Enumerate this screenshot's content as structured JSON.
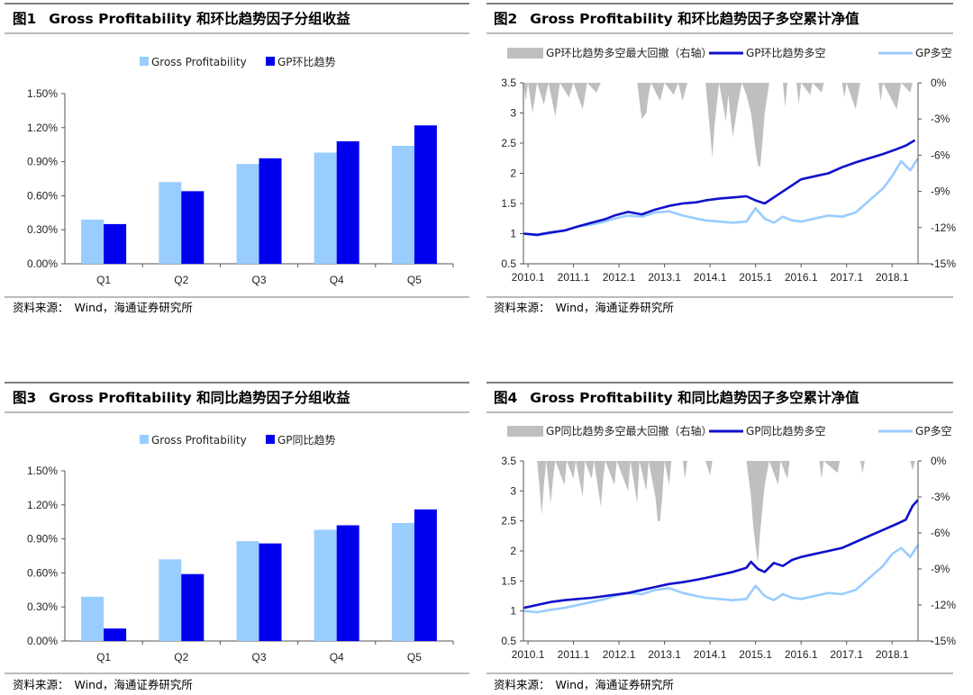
{
  "source_label": "资料来源：",
  "source_text": "Wind，海通证券研究所",
  "colors": {
    "light": "#99ccff",
    "dark": "#0000ee",
    "navy": "#1010cc",
    "gray": "#bfbfbf"
  },
  "chart_data": [
    {
      "fig": "图1",
      "type": "bar",
      "title": "Gross Profitability 和环比趋势因子分组收益",
      "categories": [
        "Q1",
        "Q2",
        "Q3",
        "Q4",
        "Q5"
      ],
      "series": [
        {
          "name": "Gross Profitability",
          "values": [
            0.39,
            0.72,
            0.88,
            0.98,
            1.04
          ]
        },
        {
          "name": "GP环比趋势",
          "values": [
            0.35,
            0.64,
            0.93,
            1.08,
            1.22
          ]
        }
      ],
      "ylim": [
        0,
        1.5
      ],
      "yticks": [
        "0.00%",
        "0.30%",
        "0.60%",
        "0.90%",
        "1.20%",
        "1.50%"
      ]
    },
    {
      "fig": "图2",
      "type": "line",
      "title": "Gross Profitability 和环比趋势因子多空累计净值",
      "legend": [
        "GP环比趋势多空最大回撤（右轴）",
        "GP环比趋势多空",
        "GP多空"
      ],
      "xticks": [
        "2010.1",
        "2011.1",
        "2012.1",
        "2013.1",
        "2014.1",
        "2015.1",
        "2016.1",
        "2017.1",
        "2018.1"
      ],
      "x_range": [
        2010.0,
        2018.67
      ],
      "ylim": [
        0.5,
        3.5
      ],
      "yticks": [
        "0.5",
        "1",
        "1.5",
        "2",
        "2.5",
        "3",
        "3.5"
      ],
      "y2lim": [
        -15,
        0
      ],
      "y2ticks": [
        "0%",
        "-3%",
        "-6%",
        "-9%",
        "-12%",
        "-15%"
      ],
      "trend_series": [
        [
          2010.0,
          1.0
        ],
        [
          2010.3,
          0.98
        ],
        [
          2010.6,
          1.02
        ],
        [
          2010.9,
          1.05
        ],
        [
          2011.2,
          1.12
        ],
        [
          2011.5,
          1.18
        ],
        [
          2011.8,
          1.24
        ],
        [
          2012.0,
          1.3
        ],
        [
          2012.3,
          1.36
        ],
        [
          2012.6,
          1.32
        ],
        [
          2012.9,
          1.4
        ],
        [
          2013.2,
          1.46
        ],
        [
          2013.5,
          1.5
        ],
        [
          2013.8,
          1.52
        ],
        [
          2014.0,
          1.55
        ],
        [
          2014.3,
          1.58
        ],
        [
          2014.6,
          1.6
        ],
        [
          2014.9,
          1.62
        ],
        [
          2015.1,
          1.55
        ],
        [
          2015.3,
          1.5
        ],
        [
          2015.5,
          1.6
        ],
        [
          2015.7,
          1.7
        ],
        [
          2015.9,
          1.8
        ],
        [
          2016.1,
          1.9
        ],
        [
          2016.4,
          1.95
        ],
        [
          2016.7,
          2.0
        ],
        [
          2017.0,
          2.1
        ],
        [
          2017.3,
          2.18
        ],
        [
          2017.6,
          2.25
        ],
        [
          2017.9,
          2.32
        ],
        [
          2018.2,
          2.4
        ],
        [
          2018.4,
          2.46
        ],
        [
          2018.6,
          2.55
        ]
      ],
      "gp_series": [
        [
          2010.0,
          1.0
        ],
        [
          2010.3,
          0.97
        ],
        [
          2010.6,
          1.01
        ],
        [
          2010.9,
          1.05
        ],
        [
          2011.2,
          1.12
        ],
        [
          2011.5,
          1.15
        ],
        [
          2011.8,
          1.2
        ],
        [
          2012.0,
          1.25
        ],
        [
          2012.3,
          1.3
        ],
        [
          2012.6,
          1.28
        ],
        [
          2012.9,
          1.35
        ],
        [
          2013.2,
          1.37
        ],
        [
          2013.5,
          1.3
        ],
        [
          2013.8,
          1.25
        ],
        [
          2014.0,
          1.22
        ],
        [
          2014.3,
          1.2
        ],
        [
          2014.6,
          1.18
        ],
        [
          2014.9,
          1.2
        ],
        [
          2015.1,
          1.42
        ],
        [
          2015.3,
          1.25
        ],
        [
          2015.5,
          1.18
        ],
        [
          2015.7,
          1.28
        ],
        [
          2015.9,
          1.22
        ],
        [
          2016.1,
          1.2
        ],
        [
          2016.4,
          1.25
        ],
        [
          2016.7,
          1.3
        ],
        [
          2017.0,
          1.28
        ],
        [
          2017.3,
          1.35
        ],
        [
          2017.6,
          1.55
        ],
        [
          2017.9,
          1.75
        ],
        [
          2018.1,
          1.95
        ],
        [
          2018.3,
          2.2
        ],
        [
          2018.5,
          2.05
        ],
        [
          2018.67,
          2.25
        ]
      ],
      "drawdown_series": [
        [
          2010.0,
          0
        ],
        [
          2010.05,
          -1.5
        ],
        [
          2010.1,
          0
        ],
        [
          2010.2,
          -2.5
        ],
        [
          2010.3,
          0
        ],
        [
          2010.45,
          -1.8
        ],
        [
          2010.55,
          0
        ],
        [
          2010.7,
          -2.8
        ],
        [
          2010.8,
          0
        ],
        [
          2011.0,
          -1.2
        ],
        [
          2011.1,
          0
        ],
        [
          2011.3,
          -2.2
        ],
        [
          2011.4,
          0
        ],
        [
          2011.6,
          -0.8
        ],
        [
          2011.7,
          0
        ],
        [
          2012.5,
          0
        ],
        [
          2012.6,
          -3.0
        ],
        [
          2012.7,
          -2.5
        ],
        [
          2012.75,
          -1.0
        ],
        [
          2012.8,
          0
        ],
        [
          2013.0,
          -1.5
        ],
        [
          2013.1,
          0
        ],
        [
          2013.3,
          -1.0
        ],
        [
          2013.4,
          0
        ],
        [
          2013.5,
          -1.5
        ],
        [
          2013.6,
          0
        ],
        [
          2014.0,
          0
        ],
        [
          2014.1,
          -4.0
        ],
        [
          2014.15,
          -6.2
        ],
        [
          2014.2,
          -3.5
        ],
        [
          2014.3,
          0
        ],
        [
          2014.45,
          -3.2
        ],
        [
          2014.5,
          -1.0
        ],
        [
          2014.6,
          -4.5
        ],
        [
          2014.7,
          -2.0
        ],
        [
          2014.8,
          0
        ],
        [
          2014.9,
          -1.0
        ],
        [
          2015.0,
          -2.5
        ],
        [
          2015.1,
          -5.5
        ],
        [
          2015.15,
          -6.8
        ],
        [
          2015.2,
          -7.0
        ],
        [
          2015.25,
          -5.0
        ],
        [
          2015.3,
          -2.5
        ],
        [
          2015.4,
          0
        ],
        [
          2015.7,
          0
        ],
        [
          2015.75,
          -2.0
        ],
        [
          2015.8,
          0
        ],
        [
          2016.0,
          0
        ],
        [
          2016.05,
          -1.8
        ],
        [
          2016.1,
          0
        ],
        [
          2016.3,
          -1.0
        ],
        [
          2016.35,
          0
        ],
        [
          2016.55,
          -0.8
        ],
        [
          2016.6,
          0
        ],
        [
          2017.0,
          0
        ],
        [
          2017.05,
          -1.2
        ],
        [
          2017.1,
          0
        ],
        [
          2017.3,
          -2.2
        ],
        [
          2017.4,
          0
        ],
        [
          2017.8,
          0
        ],
        [
          2017.85,
          -1.5
        ],
        [
          2017.9,
          0
        ],
        [
          2018.2,
          -2.2
        ],
        [
          2018.3,
          0
        ],
        [
          2018.5,
          -0.8
        ],
        [
          2018.55,
          0
        ],
        [
          2018.67,
          0
        ]
      ]
    },
    {
      "fig": "图3",
      "type": "bar",
      "title": "Gross Profitability 和同比趋势因子分组收益",
      "categories": [
        "Q1",
        "Q2",
        "Q3",
        "Q4",
        "Q5"
      ],
      "series": [
        {
          "name": "Gross Profitability",
          "values": [
            0.39,
            0.72,
            0.88,
            0.98,
            1.04
          ]
        },
        {
          "name": "GP同比趋势",
          "values": [
            0.11,
            0.59,
            0.86,
            1.02,
            1.16
          ]
        }
      ],
      "ylim": [
        0,
        1.5
      ],
      "yticks": [
        "0.00%",
        "0.30%",
        "0.60%",
        "0.90%",
        "1.20%",
        "1.50%"
      ]
    },
    {
      "fig": "图4",
      "type": "line",
      "title": "Gross Profitability 和同比趋势因子多空累计净值",
      "legend": [
        "GP同比趋势多空最大回撤（右轴）",
        "GP同比趋势多空",
        "GP多空"
      ],
      "xticks": [
        "2010.1",
        "2011.1",
        "2012.1",
        "2013.1",
        "2014.1",
        "2015.1",
        "2016.1",
        "2017.1",
        "2018.1"
      ],
      "x_range": [
        2010.0,
        2018.67
      ],
      "ylim": [
        0.5,
        3.5
      ],
      "yticks": [
        "0.5",
        "1",
        "1.5",
        "2",
        "2.5",
        "3",
        "3.5"
      ],
      "y2lim": [
        -15,
        0
      ],
      "y2ticks": [
        "0%",
        "-3%",
        "-6%",
        "-9%",
        "-12%",
        "-15%"
      ],
      "trend_series": [
        [
          2010.0,
          1.05
        ],
        [
          2010.3,
          1.1
        ],
        [
          2010.6,
          1.15
        ],
        [
          2010.9,
          1.18
        ],
        [
          2011.2,
          1.2
        ],
        [
          2011.5,
          1.22
        ],
        [
          2011.8,
          1.25
        ],
        [
          2012.0,
          1.27
        ],
        [
          2012.3,
          1.3
        ],
        [
          2012.6,
          1.35
        ],
        [
          2012.9,
          1.4
        ],
        [
          2013.2,
          1.45
        ],
        [
          2013.5,
          1.48
        ],
        [
          2013.8,
          1.52
        ],
        [
          2014.0,
          1.55
        ],
        [
          2014.3,
          1.6
        ],
        [
          2014.6,
          1.65
        ],
        [
          2014.9,
          1.72
        ],
        [
          2015.0,
          1.82
        ],
        [
          2015.15,
          1.7
        ],
        [
          2015.3,
          1.65
        ],
        [
          2015.5,
          1.8
        ],
        [
          2015.7,
          1.75
        ],
        [
          2015.9,
          1.85
        ],
        [
          2016.1,
          1.9
        ],
        [
          2016.4,
          1.95
        ],
        [
          2016.7,
          2.0
        ],
        [
          2017.0,
          2.05
        ],
        [
          2017.3,
          2.15
        ],
        [
          2017.6,
          2.25
        ],
        [
          2017.9,
          2.35
        ],
        [
          2018.2,
          2.45
        ],
        [
          2018.4,
          2.52
        ],
        [
          2018.55,
          2.75
        ],
        [
          2018.67,
          2.85
        ]
      ],
      "gp_series": [
        [
          2010.0,
          1.0
        ],
        [
          2010.3,
          0.98
        ],
        [
          2010.6,
          1.02
        ],
        [
          2010.9,
          1.05
        ],
        [
          2011.2,
          1.1
        ],
        [
          2011.5,
          1.15
        ],
        [
          2011.8,
          1.2
        ],
        [
          2012.0,
          1.25
        ],
        [
          2012.3,
          1.3
        ],
        [
          2012.6,
          1.28
        ],
        [
          2012.9,
          1.35
        ],
        [
          2013.2,
          1.38
        ],
        [
          2013.5,
          1.3
        ],
        [
          2013.8,
          1.25
        ],
        [
          2014.0,
          1.22
        ],
        [
          2014.3,
          1.2
        ],
        [
          2014.6,
          1.18
        ],
        [
          2014.9,
          1.2
        ],
        [
          2015.1,
          1.42
        ],
        [
          2015.3,
          1.25
        ],
        [
          2015.5,
          1.18
        ],
        [
          2015.7,
          1.28
        ],
        [
          2015.9,
          1.22
        ],
        [
          2016.1,
          1.2
        ],
        [
          2016.4,
          1.25
        ],
        [
          2016.7,
          1.3
        ],
        [
          2017.0,
          1.28
        ],
        [
          2017.3,
          1.35
        ],
        [
          2017.6,
          1.55
        ],
        [
          2017.9,
          1.75
        ],
        [
          2018.1,
          1.95
        ],
        [
          2018.3,
          2.05
        ],
        [
          2018.5,
          1.9
        ],
        [
          2018.67,
          2.1
        ]
      ],
      "drawdown_series": [
        [
          2010.0,
          0
        ],
        [
          2010.3,
          0
        ],
        [
          2010.35,
          -2.0
        ],
        [
          2010.4,
          -4.5
        ],
        [
          2010.45,
          -2.0
        ],
        [
          2010.5,
          0
        ],
        [
          2010.6,
          -3.5
        ],
        [
          2010.65,
          -1.5
        ],
        [
          2010.7,
          0
        ],
        [
          2010.9,
          -2.0
        ],
        [
          2010.95,
          0
        ],
        [
          2011.1,
          -1.5
        ],
        [
          2011.15,
          0
        ],
        [
          2011.3,
          -3.0
        ],
        [
          2011.35,
          0
        ],
        [
          2011.5,
          -1.5
        ],
        [
          2011.55,
          0
        ],
        [
          2011.7,
          -3.8
        ],
        [
          2011.75,
          -1.5
        ],
        [
          2011.8,
          0
        ],
        [
          2012.0,
          -2.0
        ],
        [
          2012.05,
          0
        ],
        [
          2012.3,
          -2.5
        ],
        [
          2012.35,
          0
        ],
        [
          2012.5,
          -3.5
        ],
        [
          2012.55,
          0
        ],
        [
          2012.7,
          -2.5
        ],
        [
          2012.75,
          0
        ],
        [
          2012.9,
          -3.0
        ],
        [
          2012.95,
          -5.0
        ],
        [
          2013.0,
          -5.0
        ],
        [
          2013.05,
          -3.0
        ],
        [
          2013.1,
          0
        ],
        [
          2013.2,
          -2.0
        ],
        [
          2013.25,
          0
        ],
        [
          2013.5,
          0
        ],
        [
          2013.55,
          -1.5
        ],
        [
          2013.6,
          0
        ],
        [
          2014.0,
          0
        ],
        [
          2014.1,
          -1.2
        ],
        [
          2014.15,
          0
        ],
        [
          2014.9,
          0
        ],
        [
          2015.0,
          -3.0
        ],
        [
          2015.05,
          -5.5
        ],
        [
          2015.1,
          -7.0
        ],
        [
          2015.15,
          -8.5
        ],
        [
          2015.2,
          -6.0
        ],
        [
          2015.25,
          -4.0
        ],
        [
          2015.3,
          -2.0
        ],
        [
          2015.35,
          -1.0
        ],
        [
          2015.4,
          0
        ],
        [
          2015.6,
          -2.0
        ],
        [
          2015.65,
          0
        ],
        [
          2015.8,
          -1.5
        ],
        [
          2015.85,
          0
        ],
        [
          2016.5,
          0
        ],
        [
          2016.55,
          -1.5
        ],
        [
          2016.6,
          0
        ],
        [
          2016.9,
          -1.0
        ],
        [
          2016.95,
          0
        ],
        [
          2017.4,
          0
        ],
        [
          2017.45,
          -1.0
        ],
        [
          2017.5,
          0
        ],
        [
          2018.5,
          0
        ],
        [
          2018.55,
          -0.8
        ],
        [
          2018.6,
          0
        ],
        [
          2018.67,
          0
        ]
      ]
    }
  ]
}
